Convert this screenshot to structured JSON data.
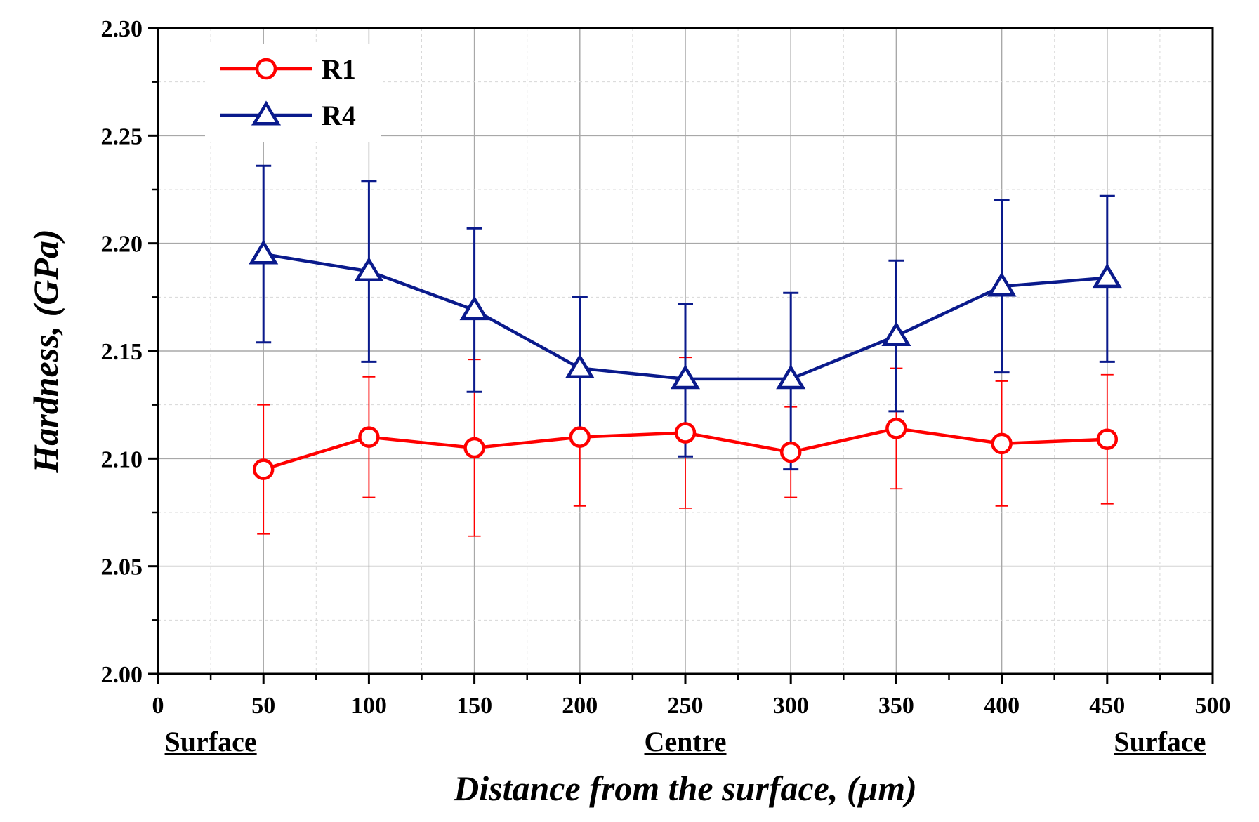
{
  "chart_data": {
    "type": "line",
    "title": "",
    "xlabel": "Distance from the surface, (μm)",
    "ylabel": "Hardness, (GPa)",
    "xlim": [
      0,
      500
    ],
    "ylim": [
      2.0,
      2.3
    ],
    "x_ticks": [
      "0",
      "50",
      "100",
      "150",
      "200",
      "250",
      "300",
      "350",
      "400",
      "450",
      "500"
    ],
    "y_ticks": [
      "2.00",
      "2.05",
      "2.10",
      "2.15",
      "2.20",
      "2.25",
      "2.30"
    ],
    "grid": true,
    "legend_position": "top-left",
    "region_labels": [
      {
        "x": 25,
        "text": "Surface"
      },
      {
        "x": 250,
        "text": "Centre"
      },
      {
        "x": 475,
        "text": "Surface"
      }
    ],
    "x": [
      50,
      100,
      150,
      200,
      250,
      300,
      350,
      400,
      450
    ],
    "series": [
      {
        "name": "R1",
        "color": "#ff0000",
        "marker": "circle",
        "values": [
          2.095,
          2.11,
          2.105,
          2.11,
          2.112,
          2.103,
          2.114,
          2.107,
          2.109
        ],
        "err_upper": [
          2.125,
          2.138,
          2.146,
          2.14,
          2.147,
          2.124,
          2.142,
          2.136,
          2.139
        ],
        "err_lower": [
          2.065,
          2.082,
          2.064,
          2.078,
          2.077,
          2.082,
          2.086,
          2.078,
          2.079
        ]
      },
      {
        "name": "R4",
        "color": "#0a1a8c",
        "marker": "triangle",
        "values": [
          2.195,
          2.187,
          2.169,
          2.142,
          2.137,
          2.137,
          2.157,
          2.18,
          2.184
        ],
        "err_upper": [
          2.236,
          2.229,
          2.207,
          2.175,
          2.172,
          2.177,
          2.192,
          2.22,
          2.222
        ],
        "err_lower": [
          2.154,
          2.145,
          2.131,
          2.109,
          2.101,
          2.095,
          2.122,
          2.14,
          2.145
        ]
      }
    ]
  }
}
